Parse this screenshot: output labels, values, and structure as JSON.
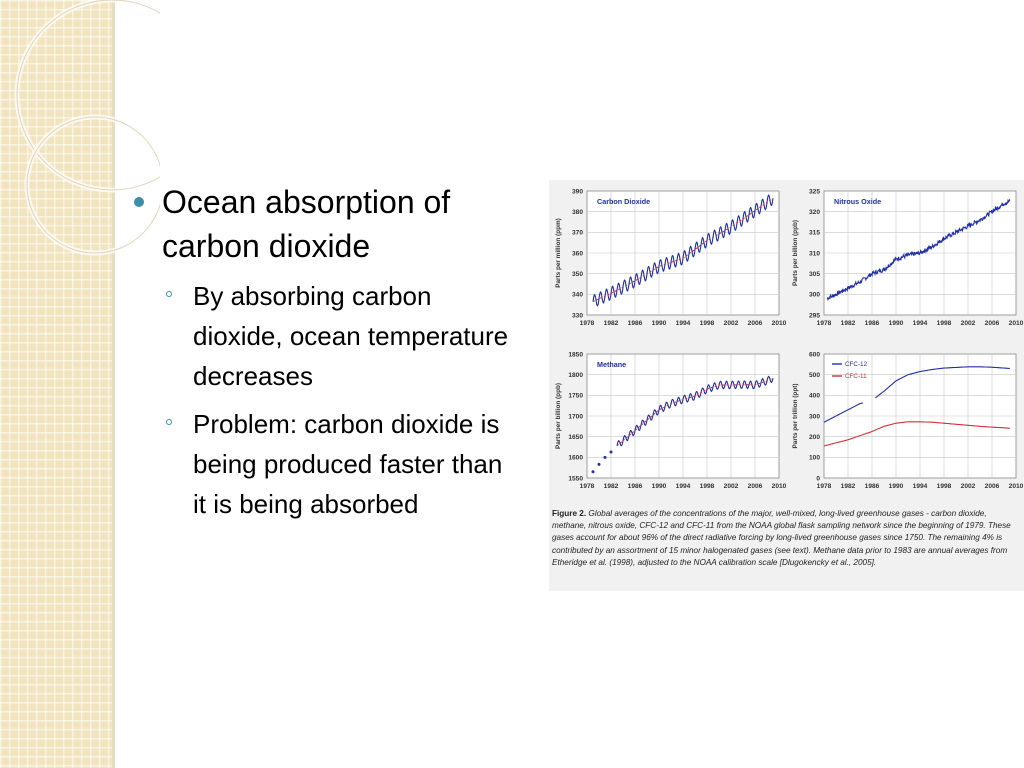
{
  "slide": {
    "main_bullet": "Ocean absorption of carbon dioxide",
    "sub_bullets": [
      "By absorbing carbon dioxide, ocean temperature decreases",
      "Problem: carbon dioxide is being produced faster than it is being absorbed"
    ]
  },
  "figure": {
    "caption_label": "Figure 2.",
    "caption_text": "Global averages of the concentrations of the major, well-mixed, long-lived greenhouse gases - carbon dioxide, methane, nitrous oxide, CFC-12 and CFC-11 from the NOAA global flask sampling network since the beginning of 1979. These gases account for about 96% of the direct radiative forcing by long-lived greenhouse gases since 1750. The remaining 4% is contributed by an assortment of 15 minor halogenated gases (see text). Methane data prior to 1983 are annual averages from Etheridge et al. (1998), adjusted to the NOAA calibration scale [Dlugokencky et al., 2005]."
  },
  "colors": {
    "accent": "#3d8ea6",
    "series_blue": "#1f2fa8",
    "series_red": "#d0303a"
  },
  "chart_data": [
    {
      "type": "line",
      "title": "Carbon Dioxide",
      "ylabel": "Parts per million (ppm)",
      "xlim": [
        1978,
        2010
      ],
      "ylim": [
        330,
        390
      ],
      "xticks": [
        "1978",
        "1982",
        "1986",
        "1990",
        "1994",
        "1998",
        "2002",
        "2006",
        "2010"
      ],
      "yticks": [
        "330",
        "340",
        "350",
        "360",
        "370",
        "380",
        "390"
      ],
      "grid": true,
      "series": [
        {
          "values": [
            [
              1979,
              336.5
            ],
            [
              1982,
              340.5
            ],
            [
              1986,
              346.5
            ],
            [
              1990,
              353.5
            ],
            [
              1994,
              357.5
            ],
            [
              1998,
              366
            ],
            [
              2002,
              372.5
            ],
            [
              2006,
              380.5
            ],
            [
              2009,
              386.5
            ]
          ],
          "seasonal_amplitude": 3,
          "color": "#1f2fa8",
          "overlay_color": "#d0303a"
        }
      ]
    },
    {
      "type": "line",
      "title": "Nitrous Oxide",
      "ylabel": "Parts per billion (ppb)",
      "xlim": [
        1978,
        2010
      ],
      "ylim": [
        295,
        325
      ],
      "xticks": [
        "1978",
        "1982",
        "1986",
        "1990",
        "1994",
        "1998",
        "2002",
        "2006",
        "2010"
      ],
      "yticks": [
        "295",
        "300",
        "305",
        "310",
        "315",
        "320",
        "325"
      ],
      "grid": true,
      "series": [
        {
          "values": [
            [
              1978.5,
              299
            ],
            [
              1980,
              300
            ],
            [
              1982,
              301.5
            ],
            [
              1984,
              303
            ],
            [
              1986,
              305
            ],
            [
              1988,
              306
            ],
            [
              1990,
              308.5
            ],
            [
              1992,
              309.5
            ],
            [
              1994,
              310
            ],
            [
              1996,
              311.5
            ],
            [
              1998,
              313.5
            ],
            [
              2000,
              315
            ],
            [
              2002,
              316.5
            ],
            [
              2004,
              318
            ],
            [
              2006,
              320
            ],
            [
              2008,
              322
            ],
            [
              2009,
              322.5
            ]
          ],
          "noise": 1,
          "color": "#1f2fa8"
        }
      ]
    },
    {
      "type": "line",
      "title": "Methane",
      "ylabel": "Parts per billion (ppb)",
      "xlim": [
        1978,
        2010
      ],
      "ylim": [
        1550,
        1850
      ],
      "xticks": [
        "1978",
        "1982",
        "1986",
        "1990",
        "1994",
        "1998",
        "2002",
        "2006",
        "2010"
      ],
      "yticks": [
        "1550",
        "1600",
        "1650",
        "1700",
        "1750",
        "1800",
        "1850"
      ],
      "grid": true,
      "annual_points": [
        [
          1979,
          1565
        ],
        [
          1980,
          1583
        ],
        [
          1981,
          1600
        ],
        [
          1982,
          1613
        ]
      ],
      "series": [
        {
          "values": [
            [
              1983,
              1628
            ],
            [
              1986,
              1665
            ],
            [
              1988,
              1690
            ],
            [
              1990,
              1715
            ],
            [
              1992,
              1730
            ],
            [
              1994,
              1740
            ],
            [
              1996,
              1748
            ],
            [
              1998,
              1765
            ],
            [
              2000,
              1775
            ],
            [
              2002,
              1775
            ],
            [
              2004,
              1776
            ],
            [
              2006,
              1775
            ],
            [
              2008,
              1785
            ],
            [
              2009,
              1792
            ]
          ],
          "seasonal_amplitude": 9,
          "color": "#1f2fa8",
          "overlay_color": "#d0303a"
        }
      ]
    },
    {
      "type": "line",
      "title": "",
      "ylabel": "Parts per trillion (ppt)",
      "xlim": [
        1978,
        2010
      ],
      "ylim": [
        0,
        600
      ],
      "xticks": [
        "1978",
        "1982",
        "1986",
        "1990",
        "1994",
        "1998",
        "2002",
        "2006",
        "2010"
      ],
      "yticks": [
        "0",
        "100",
        "200",
        "300",
        "400",
        "500",
        "600"
      ],
      "grid": true,
      "legend": "top-left",
      "series": [
        {
          "name": "CFC-12",
          "color": "#1f2fa8",
          "values": [
            [
              1978,
              270
            ],
            [
              1980,
              300
            ],
            [
              1982,
              330
            ],
            [
              1984,
              360
            ],
            [
              1986,
              375
            ],
            [
              1988,
              420
            ],
            [
              1990,
              470
            ],
            [
              1992,
              500
            ],
            [
              1994,
              515
            ],
            [
              1996,
              525
            ],
            [
              1998,
              532
            ],
            [
              2000,
              535
            ],
            [
              2002,
              538
            ],
            [
              2004,
              538
            ],
            [
              2006,
              536
            ],
            [
              2008,
              532
            ],
            [
              2009,
              530
            ]
          ],
          "gap": [
            1984.5,
            1986.5
          ]
        },
        {
          "name": "CFC-11",
          "color": "#d0303a",
          "values": [
            [
              1978,
              155
            ],
            [
              1980,
              170
            ],
            [
              1982,
              185
            ],
            [
              1984,
              205
            ],
            [
              1986,
              225
            ],
            [
              1988,
              250
            ],
            [
              1990,
              265
            ],
            [
              1992,
              272
            ],
            [
              1994,
              272
            ],
            [
              1996,
              270
            ],
            [
              1998,
              265
            ],
            [
              2000,
              260
            ],
            [
              2002,
              255
            ],
            [
              2004,
              250
            ],
            [
              2006,
              246
            ],
            [
              2008,
              243
            ],
            [
              2009,
              240
            ]
          ]
        }
      ]
    }
  ]
}
